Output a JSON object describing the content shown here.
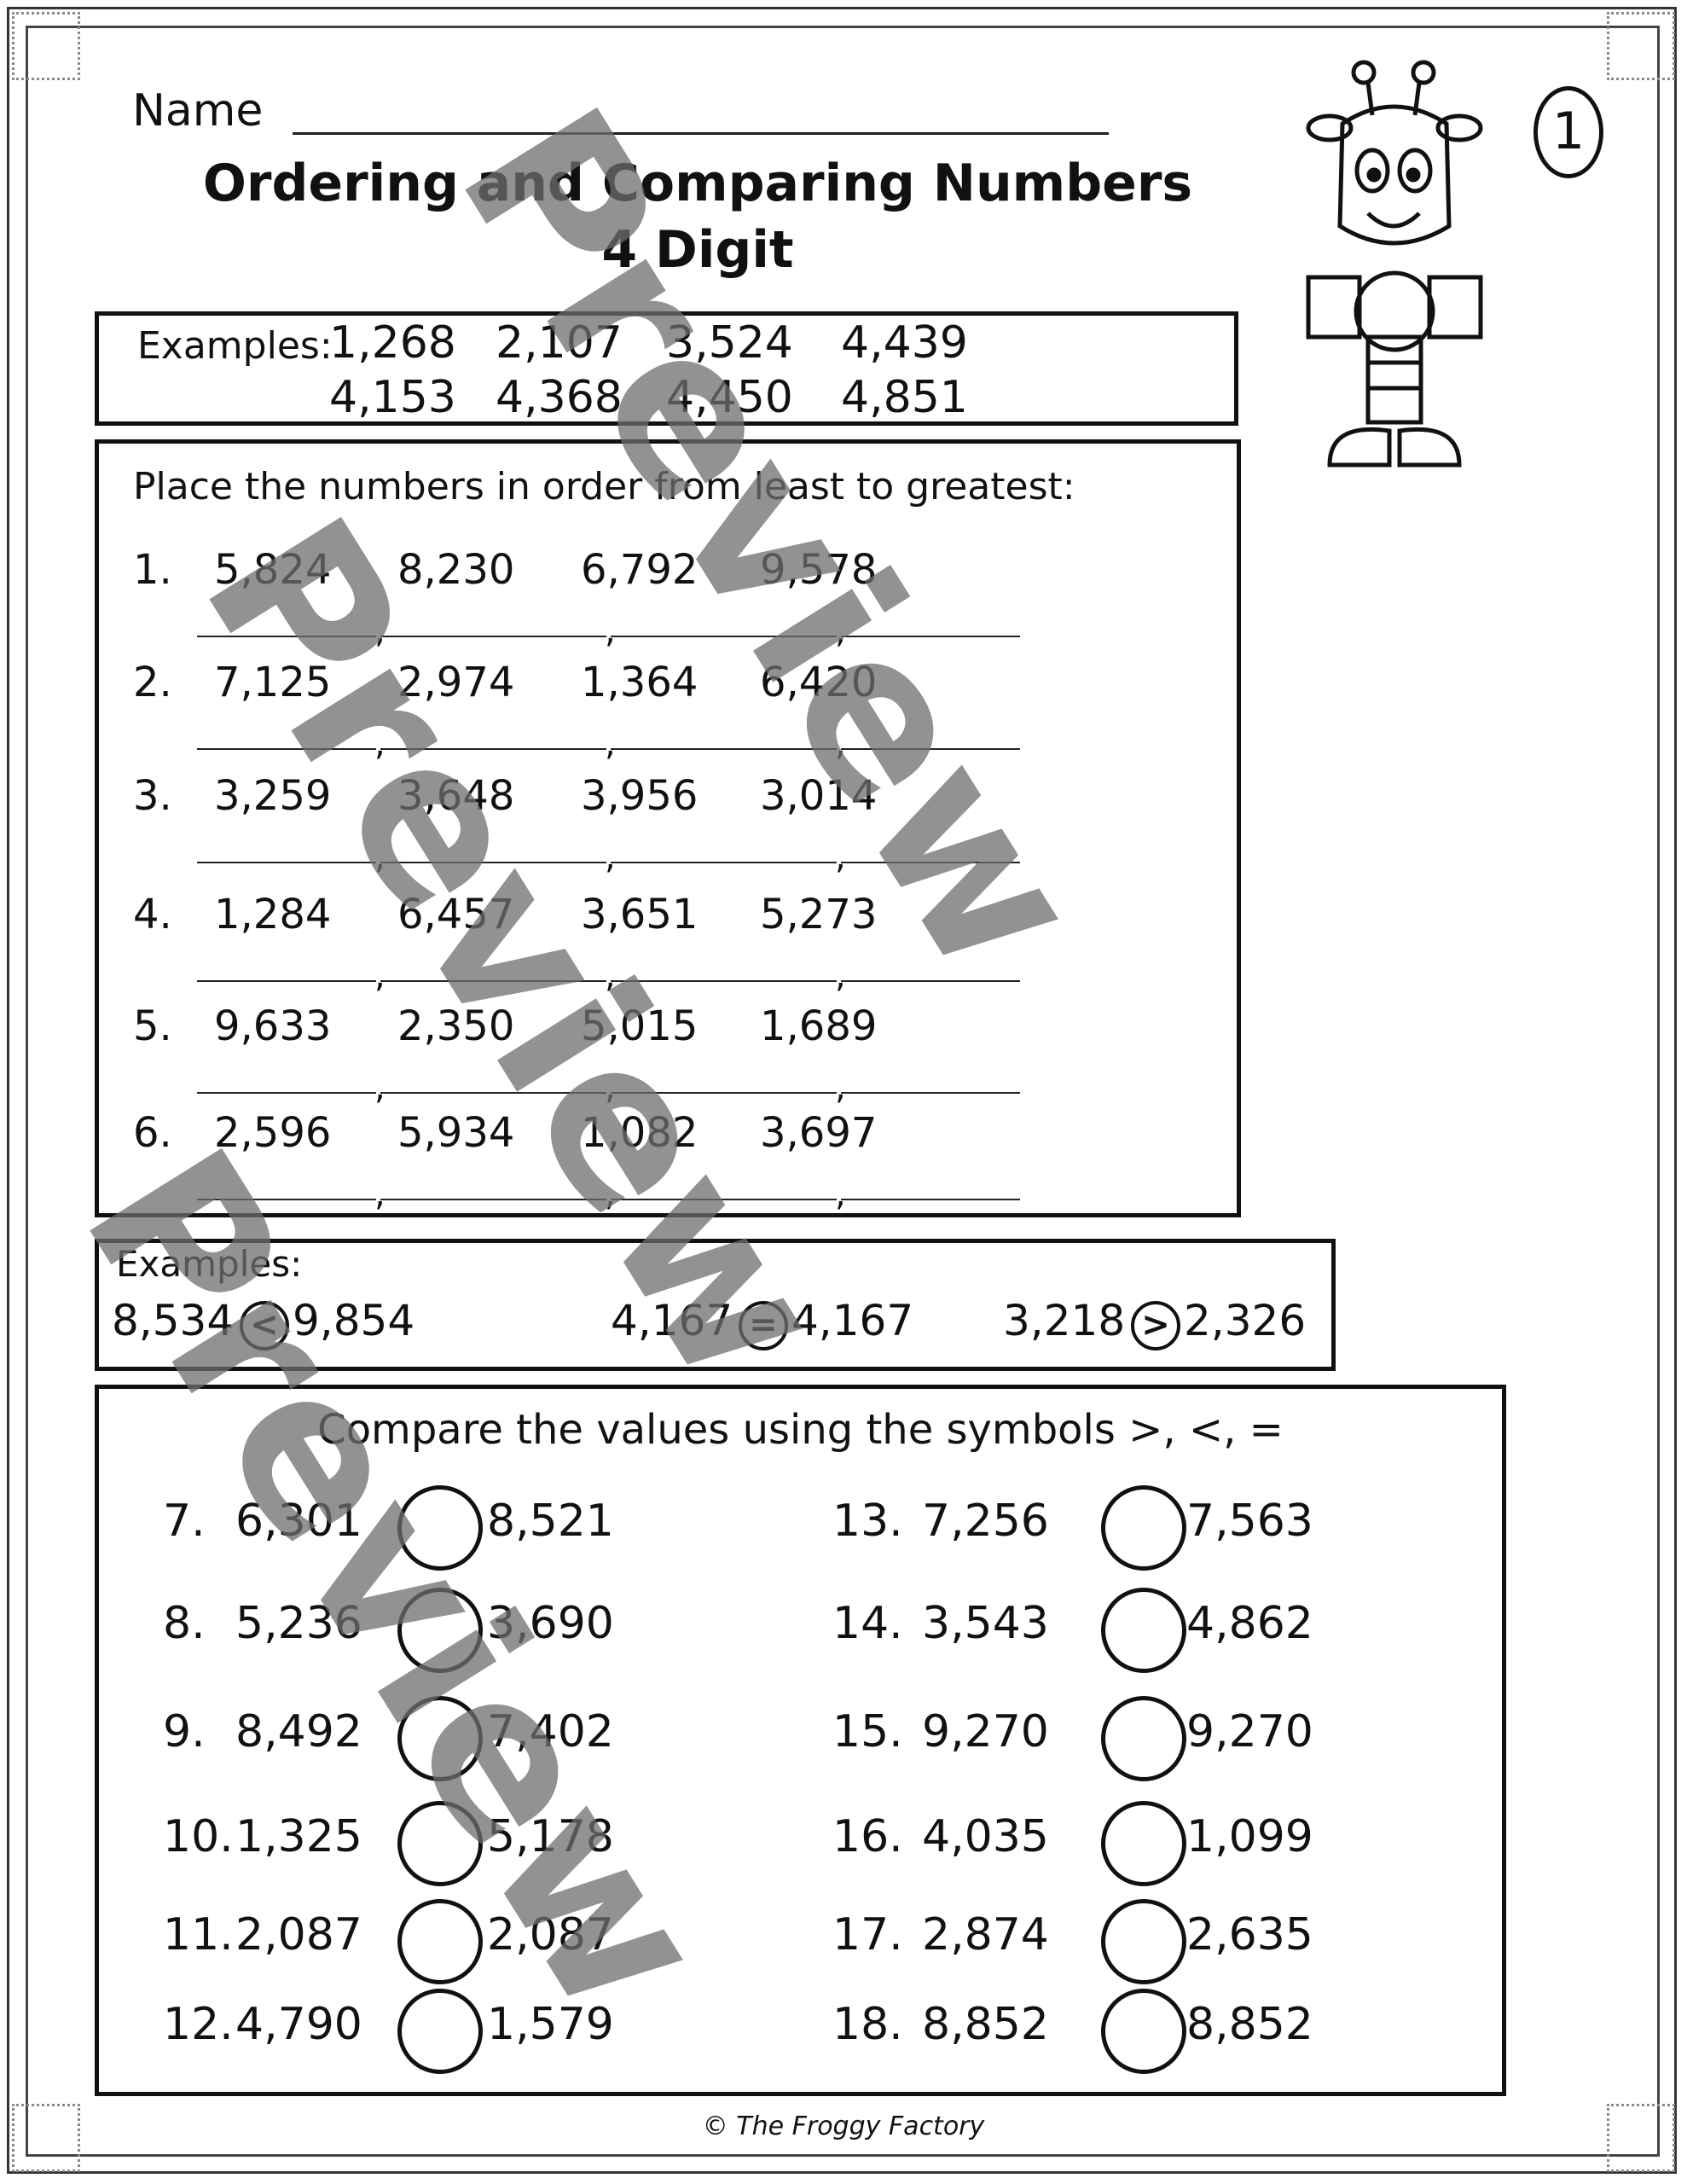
{
  "header": {
    "name_label": "Name",
    "title_line1": "Ordering and Comparing Numbers",
    "title_line2": "4 Digit",
    "page_number": "1"
  },
  "order_examples": {
    "label": "Examples:",
    "row1": [
      "1,268",
      "2,107",
      "3,524",
      "4,439"
    ],
    "row2": [
      "4,153",
      "4,368",
      "4,450",
      "4,851"
    ]
  },
  "ordering": {
    "instruction": "Place the numbers in order from least to greatest:",
    "problems": [
      {
        "label": "1.",
        "numbers": [
          "5,824",
          "8,230",
          "6,792",
          "9,578"
        ]
      },
      {
        "label": "2.",
        "numbers": [
          "7,125",
          "2,974",
          "1,364",
          "6,420"
        ]
      },
      {
        "label": "3.",
        "numbers": [
          "3,259",
          "3,648",
          "3,956",
          "3,014"
        ]
      },
      {
        "label": "4.",
        "numbers": [
          "1,284",
          "6,457",
          "3,651",
          "5,273"
        ]
      },
      {
        "label": "5.",
        "numbers": [
          "9,633",
          "2,350",
          "5,015",
          "1,689"
        ]
      },
      {
        "label": "6.",
        "numbers": [
          "2,596",
          "5,934",
          "1,082",
          "3,697"
        ]
      }
    ]
  },
  "compare_examples": {
    "label": "Examples:",
    "items": [
      {
        "left": "8,534",
        "symbol": "<",
        "right": "9,854"
      },
      {
        "left": "4,167",
        "symbol": "=",
        "right": "4,167"
      },
      {
        "left": "3,218",
        "symbol": ">",
        "right": "2,326"
      }
    ]
  },
  "comparing": {
    "instruction": "Compare the values using the symbols >, <, =",
    "left_column": [
      {
        "label": "7.",
        "a": "6,301",
        "b": "8,521"
      },
      {
        "label": "8.",
        "a": "5,236",
        "b": "3,690"
      },
      {
        "label": "9.",
        "a": "8,492",
        "b": "7,402"
      },
      {
        "label": "10.",
        "a": "1,325",
        "b": "5,178"
      },
      {
        "label": "11.",
        "a": "2,087",
        "b": "2,087"
      },
      {
        "label": "12.",
        "a": "4,790",
        "b": "1,579"
      }
    ],
    "right_column": [
      {
        "label": "13.",
        "a": "7,256",
        "b": "7,563"
      },
      {
        "label": "14.",
        "a": "3,543",
        "b": "4,862"
      },
      {
        "label": "15.",
        "a": "9,270",
        "b": "9,270"
      },
      {
        "label": "16.",
        "a": "4,035",
        "b": "1,099"
      },
      {
        "label": "17.",
        "a": "2,874",
        "b": "2,635"
      },
      {
        "label": "18.",
        "a": "8,852",
        "b": "8,852"
      }
    ]
  },
  "footer": "© The Froggy Factory",
  "watermark": "Preview"
}
